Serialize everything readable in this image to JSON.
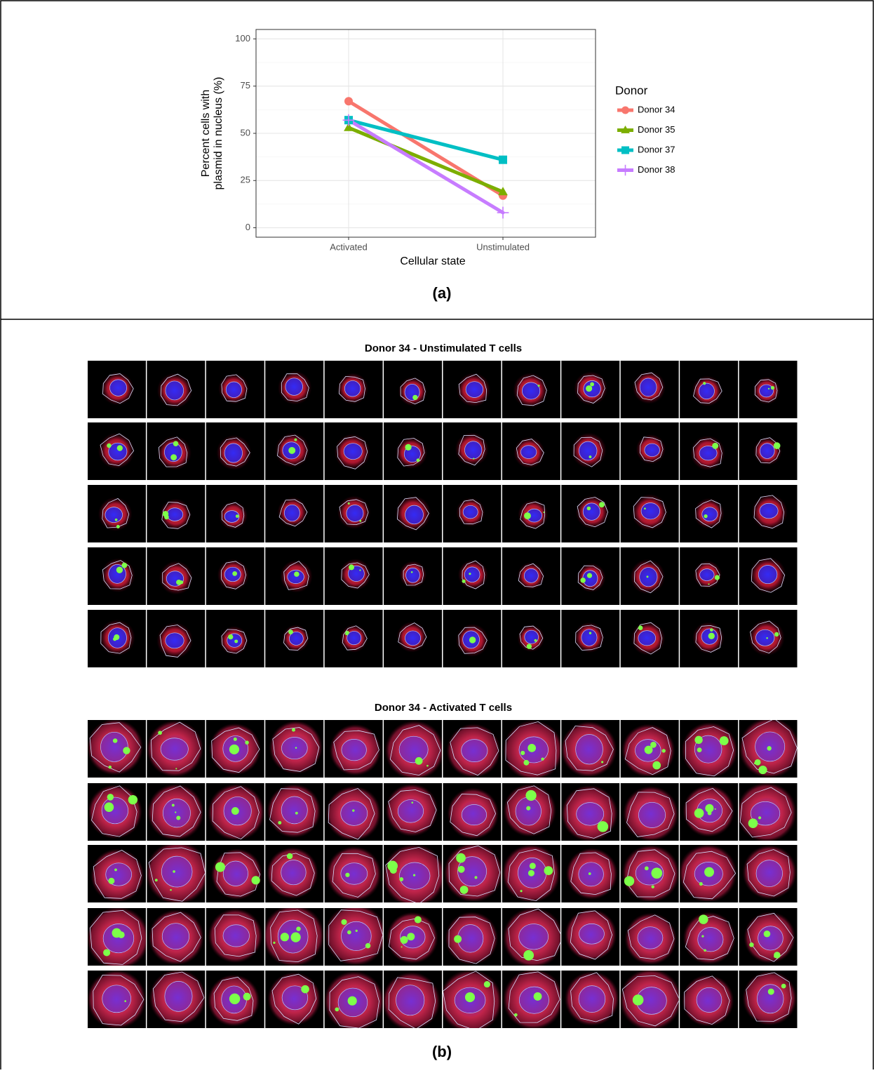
{
  "chart_data": {
    "type": "line",
    "categories": [
      "Activated",
      "Unstimulated"
    ],
    "series": [
      {
        "name": "Donor 34",
        "color": "#F8766D",
        "marker": "circle",
        "values": [
          67,
          17
        ]
      },
      {
        "name": "Donor 35",
        "color": "#7CAE00",
        "marker": "triangle",
        "values": [
          53,
          19
        ]
      },
      {
        "name": "Donor 37",
        "color": "#00BFC4",
        "marker": "square",
        "values": [
          57,
          36
        ]
      },
      {
        "name": "Donor 38",
        "color": "#C77CFF",
        "marker": "plus",
        "values": [
          57,
          8
        ]
      }
    ],
    "ylim": [
      -5,
      105
    ],
    "yticks": [
      0,
      25,
      50,
      75,
      100
    ],
    "grid": true,
    "x_label": "Cellular state",
    "y_label": [
      "Percent cells with",
      "plasmid in nucleus (%)"
    ],
    "legend_title": "Donor",
    "legend_position": "right"
  },
  "panel_labels": [
    "(a)",
    "(b)"
  ],
  "image_grids": [
    {
      "title": "Donor 34 - Unstimulated T cells"
    },
    {
      "title": "Donor 34 - Activated T cells"
    }
  ]
}
